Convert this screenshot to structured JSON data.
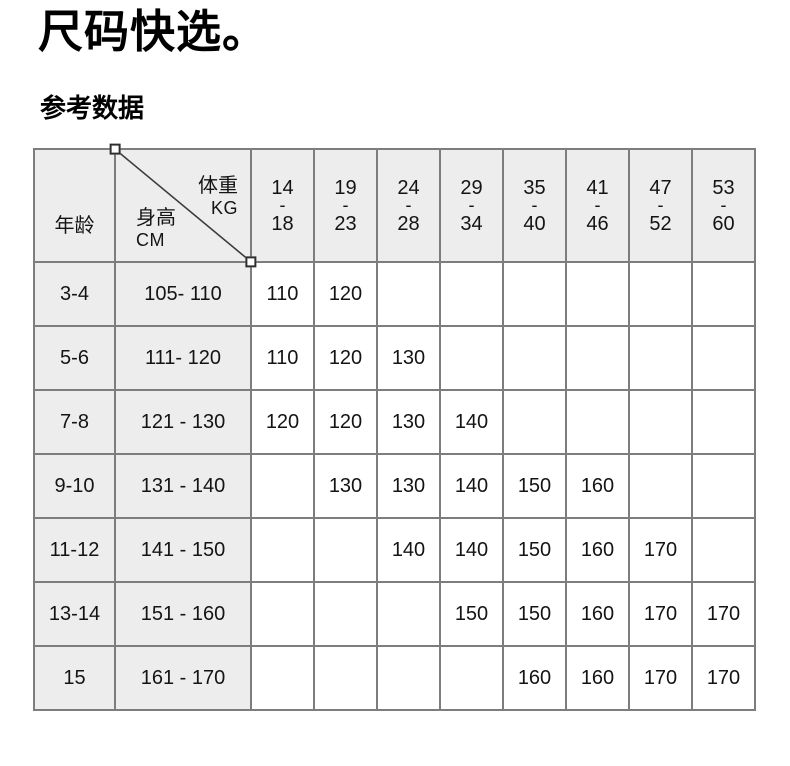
{
  "page": {
    "title": "尺码快选。",
    "subtitle": "参考数据"
  },
  "size_table": {
    "age_header": "年龄",
    "corner": {
      "weight_label": "体重",
      "weight_unit": "KG",
      "height_label": "身高",
      "height_unit": "CM"
    },
    "range_separator": "-",
    "weight_columns": [
      {
        "from": "14",
        "to": "18"
      },
      {
        "from": "19",
        "to": "23"
      },
      {
        "from": "24",
        "to": "28"
      },
      {
        "from": "29",
        "to": "34"
      },
      {
        "from": "35",
        "to": "40"
      },
      {
        "from": "41",
        "to": "46"
      },
      {
        "from": "47",
        "to": "52"
      },
      {
        "from": "53",
        "to": "60"
      }
    ],
    "rows": [
      {
        "age": "3-4",
        "height": "105- 110",
        "sizes": [
          "110",
          "120",
          "",
          "",
          "",
          "",
          "",
          ""
        ]
      },
      {
        "age": "5-6",
        "height": "111- 120",
        "sizes": [
          "110",
          "120",
          "130",
          "",
          "",
          "",
          "",
          ""
        ]
      },
      {
        "age": "7-8",
        "height": "121 - 130",
        "sizes": [
          "120",
          "120",
          "130",
          "140",
          "",
          "",
          "",
          ""
        ]
      },
      {
        "age": "9-10",
        "height": "131 - 140",
        "sizes": [
          "",
          "130",
          "130",
          "140",
          "150",
          "160",
          "",
          ""
        ]
      },
      {
        "age": "11-12",
        "height": "141 - 150",
        "sizes": [
          "",
          "",
          "140",
          "140",
          "150",
          "160",
          "170",
          ""
        ]
      },
      {
        "age": "13-14",
        "height": "151 - 160",
        "sizes": [
          "",
          "",
          "",
          "150",
          "150",
          "160",
          "170",
          "170"
        ]
      },
      {
        "age": "15",
        "height": "161 - 170",
        "sizes": [
          "",
          "",
          "",
          "",
          "160",
          "160",
          "170",
          "170"
        ]
      }
    ]
  },
  "colors": {
    "header_fill": "#ededed",
    "border": "#7d7d7d",
    "text": "#141414",
    "diagonal": "#3c3c3c"
  }
}
